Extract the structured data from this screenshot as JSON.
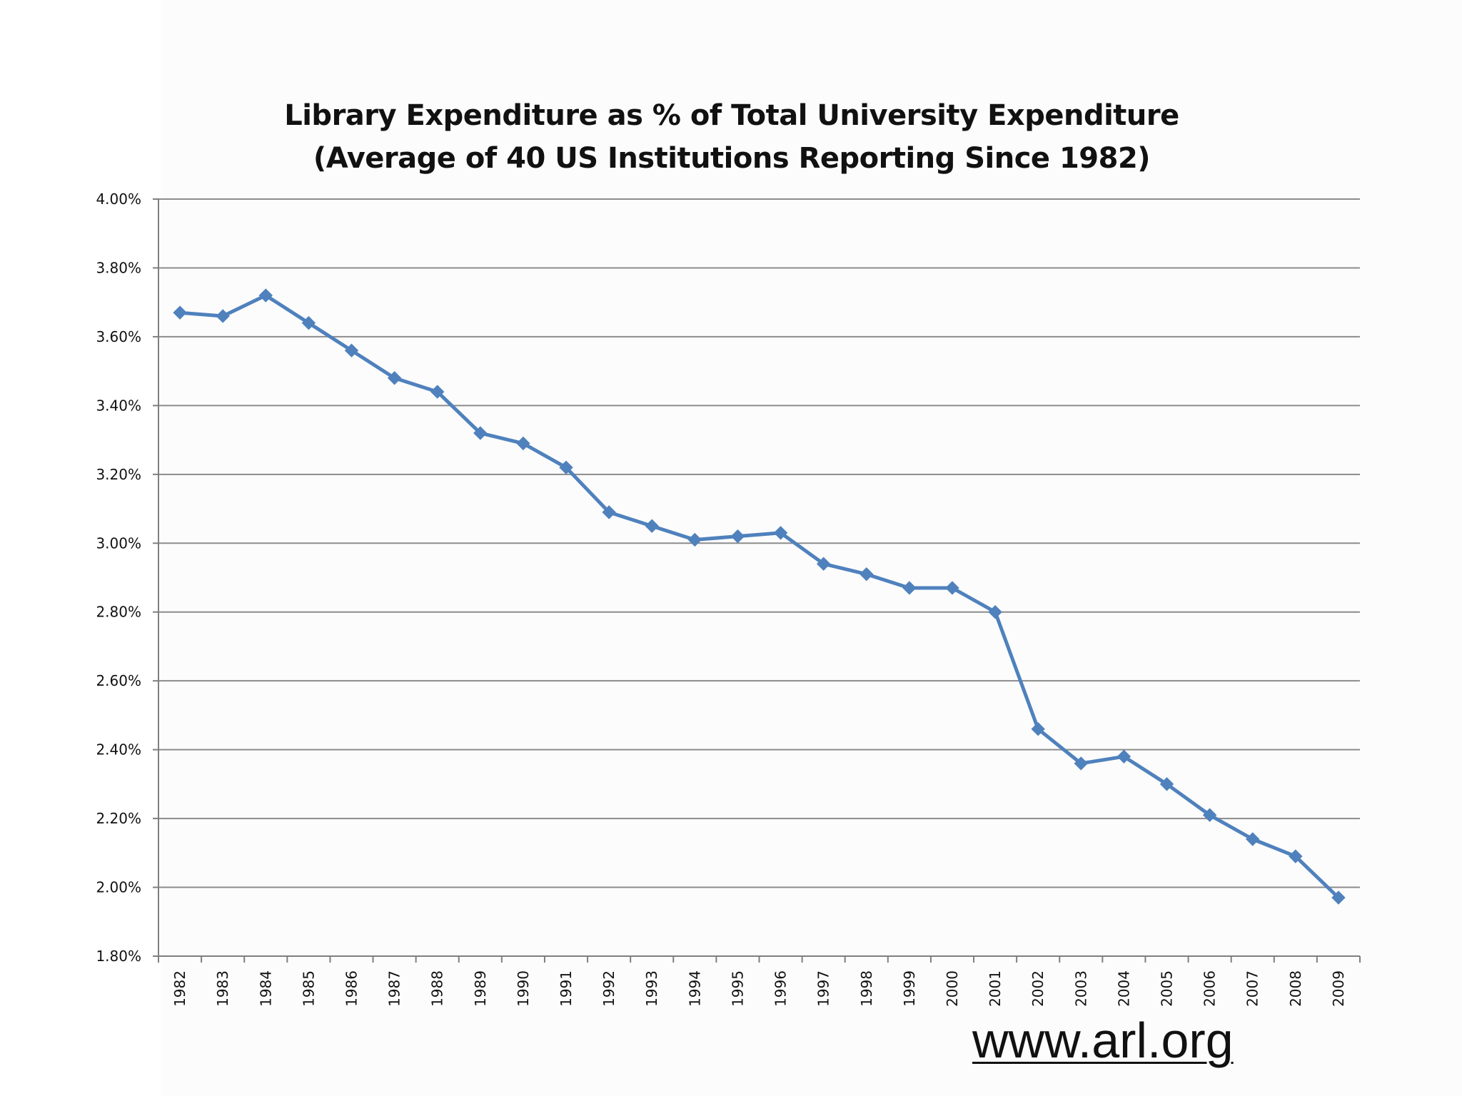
{
  "chart_data": {
    "type": "line",
    "title": "Library Expenditure as % of Total University Expenditure",
    "subtitle": "(Average of 40 US Institutions Reporting Since 1982)",
    "xlabel": "",
    "ylabel": "",
    "ylim": [
      1.8,
      4.0
    ],
    "ytick_step": 0.2,
    "y_format": "percent_2dp",
    "grid": "horizontal",
    "legend": "none",
    "categories": [
      "1982",
      "1983",
      "1984",
      "1985",
      "1986",
      "1987",
      "1988",
      "1989",
      "1990",
      "1991",
      "1992",
      "1993",
      "1994",
      "1995",
      "1996",
      "1997",
      "1998",
      "1999",
      "2000",
      "2001",
      "2002",
      "2003",
      "2004",
      "2005",
      "2006",
      "2007",
      "2008",
      "2009"
    ],
    "series": [
      {
        "values": [
          3.67,
          3.66,
          3.72,
          3.64,
          3.56,
          3.48,
          3.44,
          3.32,
          3.29,
          3.22,
          3.09,
          3.05,
          3.01,
          3.02,
          3.03,
          2.94,
          2.91,
          2.87,
          2.87,
          2.8,
          2.46,
          2.36,
          2.38,
          2.3,
          2.21,
          2.14,
          2.09,
          1.97
        ],
        "color": "#4f81bd",
        "marker": "diamond"
      }
    ]
  },
  "source_text": "www.arl.org"
}
